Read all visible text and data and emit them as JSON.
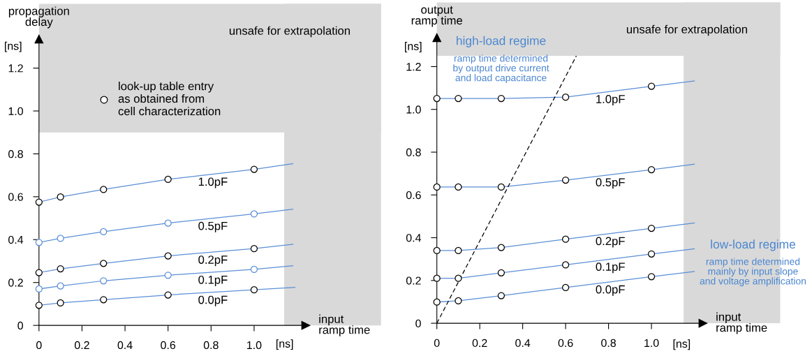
{
  "chart_data": [
    {
      "type": "line",
      "ylabel": "propagation\ndelay",
      "xlabel": "input\nramp time",
      "xlim": [
        0,
        1.24
      ],
      "ylim": [
        0,
        1.335
      ],
      "xticks": [
        0,
        0.2,
        0.4,
        0.6,
        0.8,
        {
          "value": 1.0,
          "label": "1.0"
        }
      ],
      "yticks": [
        0,
        0.2,
        0.4,
        0.6,
        0.8,
        {
          "value": 1.0,
          "label": "1.0"
        },
        1.2
      ],
      "grid": false,
      "legend": "top left",
      "bands": [
        {
          "axis": "y",
          "from": 0.9,
          "to": 1.5,
          "label": "unsafe for extrapolation",
          "color": "#d9d9d9"
        },
        {
          "axis": "x",
          "from": 1.14,
          "to": 1.59,
          "color": "#d9d9d9"
        }
      ],
      "annotations": [
        "[ns]",
        "[ns]"
      ],
      "series": [
        {
          "name": "1.0pF",
          "color": "#5b8fd6",
          "x": [
            0,
            0.1,
            0.3,
            0.6,
            1.0,
            1.18
          ],
          "values": [
            0.575,
            0.599,
            0.634,
            0.681,
            0.728,
            0.754
          ]
        },
        {
          "name": "0.5pF",
          "color": "#5b8fd6",
          "x": [
            0,
            0.1,
            0.3,
            0.6,
            1.0,
            1.18
          ],
          "values": [
            0.387,
            0.406,
            0.437,
            0.477,
            0.52,
            0.542
          ]
        },
        {
          "name": "0.2pF",
          "color": "#5b8fd6",
          "x": [
            0,
            0.1,
            0.3,
            0.6,
            1.0,
            1.18
          ],
          "values": [
            0.246,
            0.264,
            0.289,
            0.324,
            0.358,
            0.378
          ]
        },
        {
          "name": "0.1pF",
          "color": "#5b8fd6",
          "x": [
            0,
            0.1,
            0.3,
            0.6,
            1.0,
            1.18
          ],
          "values": [
            0.17,
            0.184,
            0.208,
            0.234,
            0.261,
            0.278
          ]
        },
        {
          "name": "0.0pF",
          "color": "#5b8fd6",
          "x": [
            0,
            0.1,
            0.3,
            0.6,
            1.0,
            1.19
          ],
          "values": [
            0.094,
            0.105,
            0.12,
            0.142,
            0.166,
            0.177
          ]
        },
        {
          "type": "scatter",
          "name": "look-up table entry\nas obtained from\ncell characterization",
          "marker": "circle",
          "x": [
            0,
            0.1,
            0.3,
            0.6,
            1.0,
            0,
            0.1,
            0.3,
            0.6,
            1.0,
            0,
            0.1,
            0.3,
            0.6,
            1.0,
            0,
            0.1,
            0.3,
            0.6,
            1.0,
            0,
            0.1,
            0.3,
            0.6,
            1.0
          ],
          "values": [
            0.575,
            0.599,
            0.634,
            0.681,
            0.728,
            0.387,
            0.406,
            0.437,
            0.477,
            0.52,
            0.246,
            0.264,
            0.289,
            0.324,
            0.358,
            0.17,
            0.184,
            0.208,
            0.234,
            0.261,
            0.094,
            0.105,
            0.12,
            0.142,
            0.166
          ],
          "colors": [
            "#000000",
            "#000000",
            "#000000",
            "#000000",
            "#000000",
            "#5b8fd6",
            "#5b8fd6",
            "#5b8fd6",
            "#5b8fd6",
            "#5b8fd6",
            "#000000",
            "#000000",
            "#000000",
            "#000000",
            "#000000",
            "#5b8fd6",
            "#5b8fd6",
            "#5b8fd6",
            "#5b8fd6",
            "#5b8fd6",
            "#000000",
            "#000000",
            "#000000",
            "#000000",
            "#000000"
          ]
        }
      ]
    },
    {
      "type": "line",
      "ylabel": "output\nramp time",
      "xlabel": "input\nramp time",
      "xlim": [
        0,
        1.24
      ],
      "ylim": [
        0,
        1.335
      ],
      "xticks": [
        0,
        0.2,
        0.4,
        0.6,
        0.8,
        {
          "value": 1.0,
          "label": "1.0"
        }
      ],
      "yticks": [
        0,
        0.2,
        0.4,
        0.6,
        0.8,
        {
          "value": 1.0,
          "label": "1.0"
        },
        1.2
      ],
      "grid": false,
      "bands": [
        {
          "axis": "y",
          "from": 1.25,
          "to": 1.5,
          "label": "unsafe for extrapolation",
          "color": "#d9d9d9"
        },
        {
          "axis": "x",
          "from": 1.15,
          "to": 1.6,
          "color": "#d9d9d9"
        }
      ],
      "annotations": [
        "[ns]",
        "[ns]",
        "high-load regime",
        "ramp time determined\nby output drive current\nand load capacitance",
        "low-load regime",
        "ramp time determined\nmainly by input slope\nand voltage amplification"
      ],
      "series": [
        {
          "name": "1.0pF",
          "color": "#5b8fd6",
          "x": [
            0,
            0.1,
            0.3,
            0.6,
            1.0,
            1.2
          ],
          "values": [
            1.051,
            1.051,
            1.051,
            1.057,
            1.108,
            1.133
          ]
        },
        {
          "name": "0.5pF",
          "color": "#5b8fd6",
          "x": [
            0,
            0.1,
            0.3,
            0.6,
            1.0,
            1.2
          ],
          "values": [
            0.637,
            0.637,
            0.637,
            0.669,
            0.718,
            0.744
          ]
        },
        {
          "name": "0.2pF",
          "color": "#5b8fd6",
          "x": [
            0,
            0.1,
            0.3,
            0.6,
            1.0,
            1.2
          ],
          "values": [
            0.34,
            0.34,
            0.354,
            0.393,
            0.444,
            0.469
          ]
        },
        {
          "name": "0.1pF",
          "color": "#5b8fd6",
          "x": [
            0,
            0.1,
            0.3,
            0.6,
            1.0,
            1.2
          ],
          "values": [
            0.21,
            0.21,
            0.236,
            0.273,
            0.324,
            0.348
          ]
        },
        {
          "name": "0.0pF",
          "color": "#5b8fd6",
          "x": [
            0,
            0.1,
            0.3,
            0.6,
            1.0,
            1.2
          ],
          "values": [
            0.099,
            0.105,
            0.129,
            0.167,
            0.218,
            0.242
          ]
        },
        {
          "type": "line",
          "color": "#000000",
          "line_style": "dashed",
          "x": [
            0,
            0.65
          ],
          "values": [
            0,
            1.25
          ]
        },
        {
          "type": "scatter",
          "marker": "circle",
          "x": [
            0,
            0.1,
            0.3,
            0.6,
            1.0,
            0,
            0.1,
            0.3,
            0.6,
            1.0,
            0,
            0.1,
            0.3,
            0.6,
            1.0,
            0,
            0.1,
            0.3,
            0.6,
            1.0,
            0,
            0.1,
            0.3,
            0.6,
            1.0
          ],
          "values": [
            1.051,
            1.051,
            1.051,
            1.057,
            1.108,
            0.637,
            0.637,
            0.637,
            0.669,
            0.718,
            0.34,
            0.34,
            0.354,
            0.393,
            0.444,
            0.21,
            0.21,
            0.236,
            0.273,
            0.324,
            0.099,
            0.105,
            0.129,
            0.167,
            0.218
          ],
          "colors": [
            "#000000",
            "#000000",
            "#000000",
            "#000000",
            "#000000",
            "#000000",
            "#000000",
            "#000000",
            "#000000",
            "#000000",
            "#000000",
            "#000000",
            "#000000",
            "#000000",
            "#000000",
            "#000000",
            "#000000",
            "#000000",
            "#000000",
            "#000000",
            "#000000",
            "#000000",
            "#000000",
            "#000000",
            "#000000"
          ]
        }
      ]
    }
  ]
}
